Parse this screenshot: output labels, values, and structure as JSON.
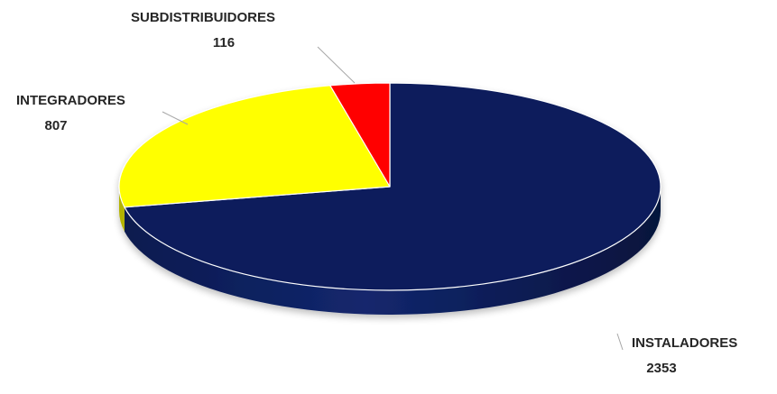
{
  "chart_data": {
    "type": "pie",
    "variant": "3d",
    "title": "",
    "categories": [
      "INSTALADORES",
      "INTEGRADORES",
      "SUBDISTRIBUIDORES"
    ],
    "values": [
      2353,
      807,
      116
    ],
    "labels": [
      {
        "name": "INSTALADORES",
        "value": "2353"
      },
      {
        "name": "INTEGRADORES",
        "value": "807"
      },
      {
        "name": "SUBDISTRIBUIDORES",
        "value": "116"
      }
    ],
    "colors": [
      "#0d1f5c",
      "#ffff00",
      "#ff0000"
    ],
    "legend": "none",
    "data_labels": "outside-with-leader-lines"
  }
}
